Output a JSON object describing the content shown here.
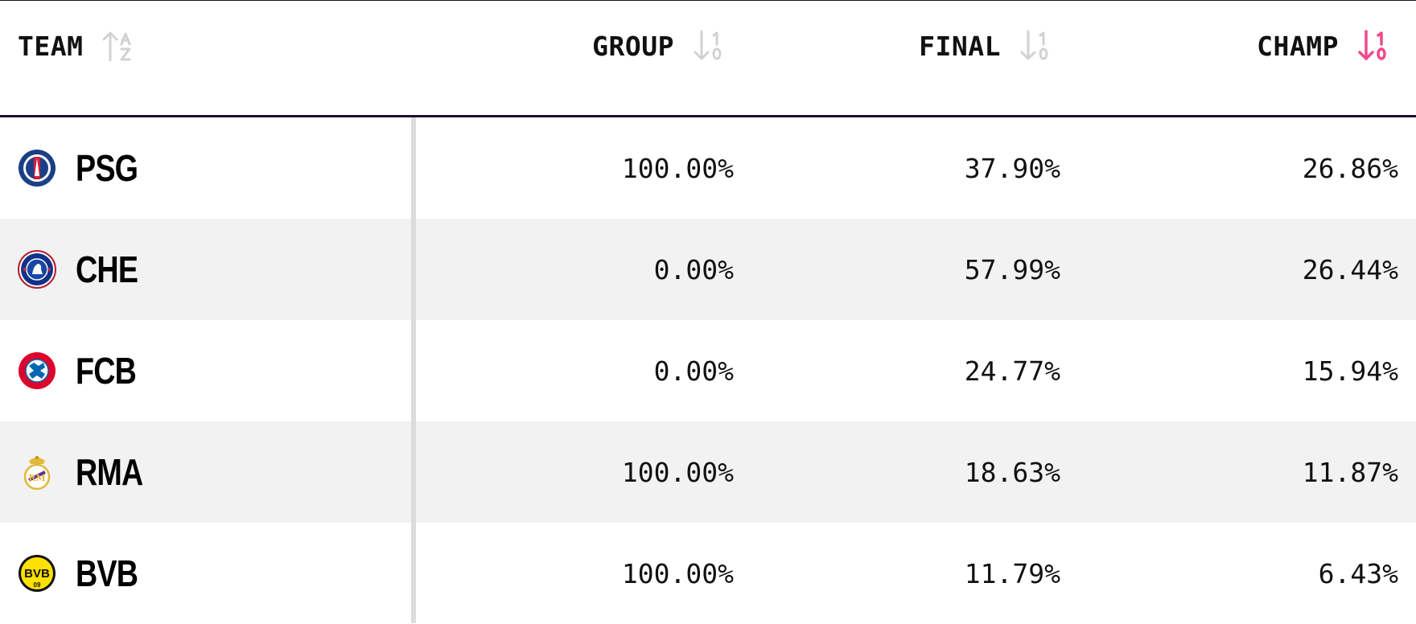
{
  "header": {
    "team": "TEAM",
    "group": "GROUP",
    "final": "FINAL",
    "champ": "CHAMP",
    "active_sort": "champ",
    "active_color": "#ee4a8e",
    "inactive_color": "#d2d2d2",
    "sort_icons": {
      "team": "sort-alpha-asc-icon",
      "group": "sort-numeric-desc-icon",
      "final": "sort-numeric-desc-icon",
      "champ": "sort-numeric-desc-icon"
    }
  },
  "rows": [
    {
      "team": "PSG",
      "logo": "psg-crest-icon",
      "group": "100.00%",
      "final": "37.90%",
      "champ": "26.86%"
    },
    {
      "team": "CHE",
      "logo": "chelsea-crest-icon",
      "group": "0.00%",
      "final": "57.99%",
      "champ": "26.44%"
    },
    {
      "team": "FCB",
      "logo": "bayern-crest-icon",
      "group": "0.00%",
      "final": "24.77%",
      "champ": "15.94%"
    },
    {
      "team": "RMA",
      "logo": "real-madrid-crest-icon",
      "group": "100.00%",
      "final": "18.63%",
      "champ": "11.87%"
    },
    {
      "team": "BVB",
      "logo": "dortmund-crest-icon",
      "group": "100.00%",
      "final": "11.79%",
      "champ": "6.43%"
    }
  ]
}
